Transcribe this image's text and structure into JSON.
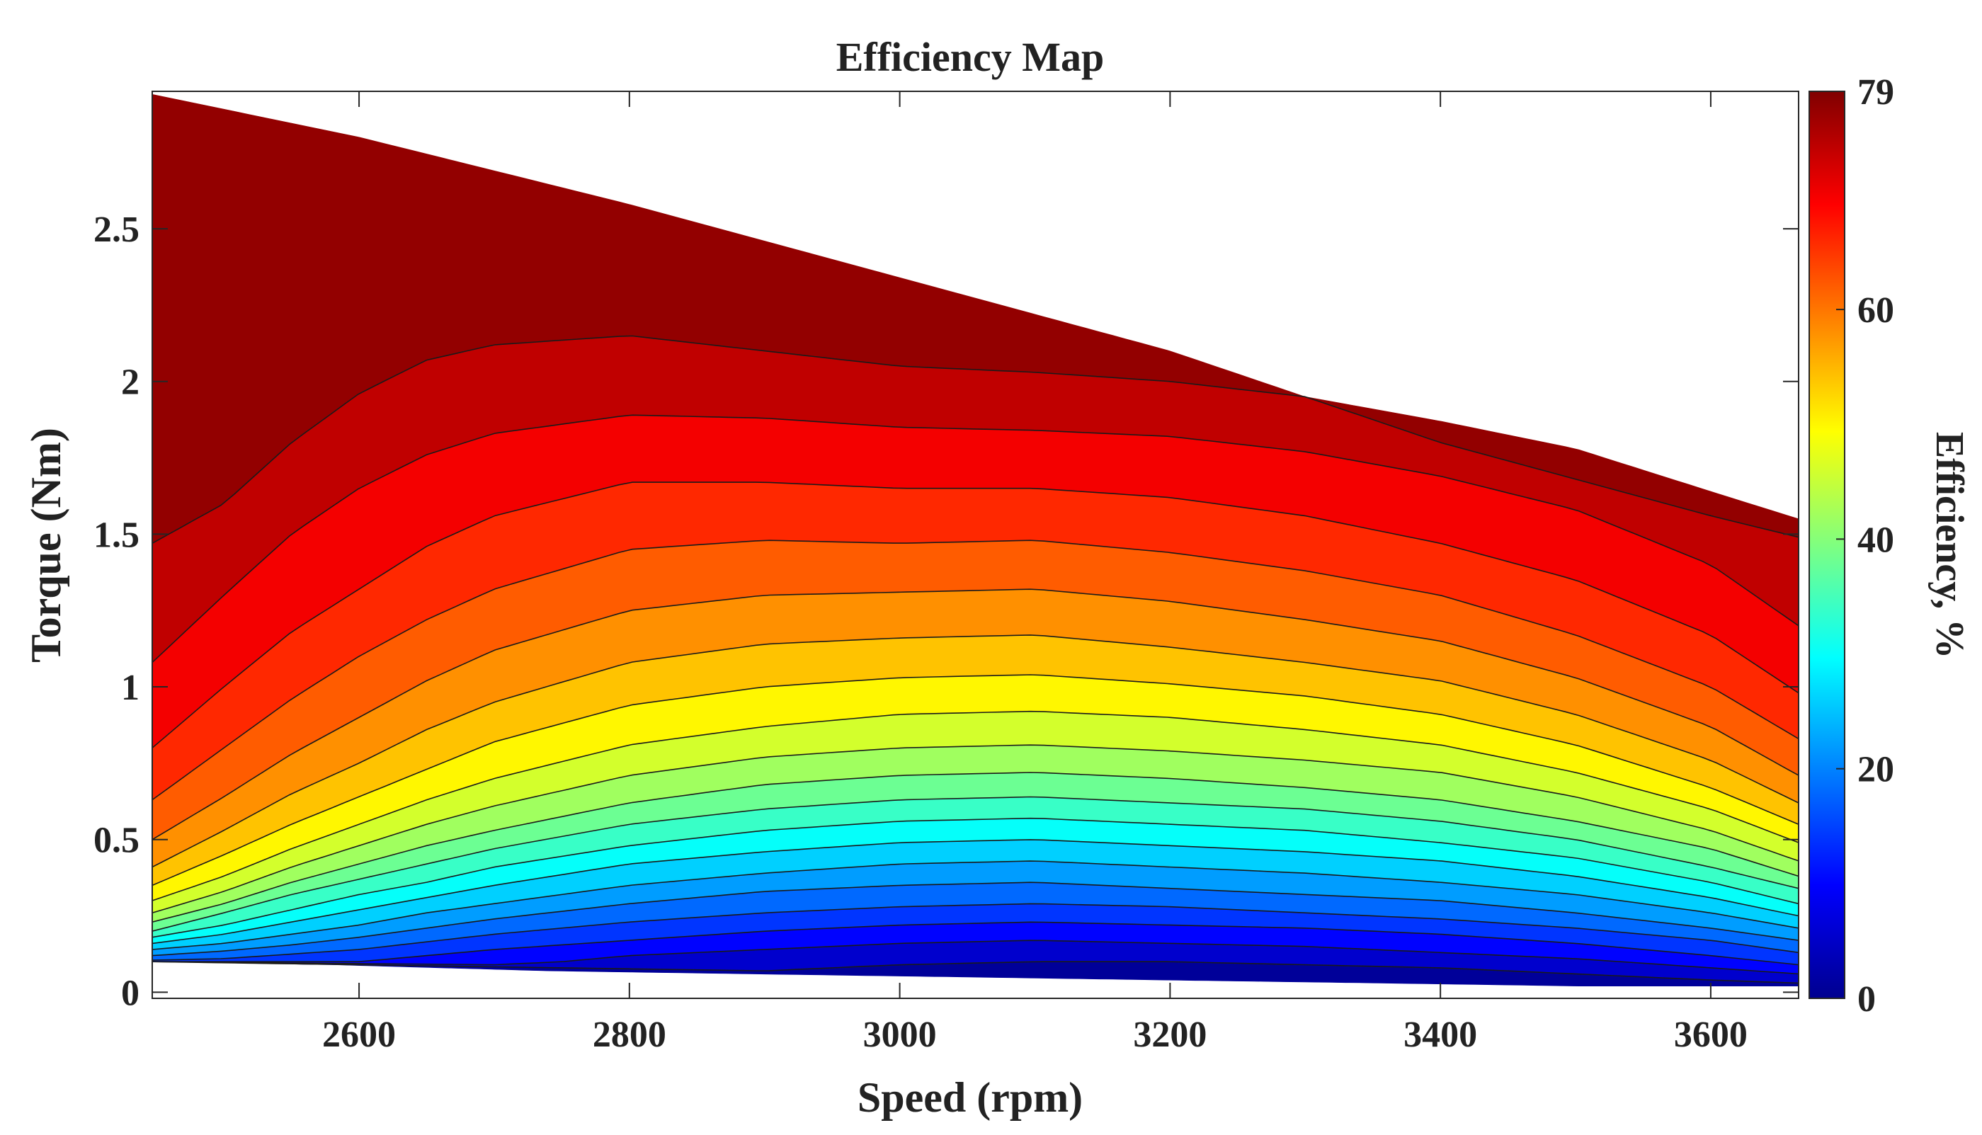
{
  "chart_data": {
    "type": "contourf",
    "title": "Efficiency Map",
    "xlabel": "Speed (rpm)",
    "ylabel": "Torque (Nm)",
    "xlim": [
      2447,
      3665
    ],
    "ylim": [
      -0.02,
      2.95
    ],
    "xticks": [
      2600,
      2800,
      3000,
      3200,
      3400,
      3600
    ],
    "yticks": [
      0,
      0.5,
      1,
      1.5,
      2,
      2.5
    ],
    "xtick_labels": [
      "2600",
      "2800",
      "3000",
      "3200",
      "3400",
      "3600"
    ],
    "ytick_labels": [
      "0",
      "0.5",
      "1",
      "1.5",
      "2",
      "2.5"
    ],
    "grid": false,
    "colorbar": {
      "label": "Efficiency, %",
      "min": 0,
      "max": 79,
      "ticks": [
        0,
        20,
        40,
        60,
        79
      ],
      "tick_labels": [
        "0",
        "20",
        "40",
        "60",
        "79"
      ],
      "colormap": "jet",
      "position": "right"
    },
    "contour_levels": [
      0,
      4,
      8,
      12,
      16,
      20,
      24,
      28,
      32,
      36,
      40,
      44,
      48,
      52,
      56,
      60,
      64,
      68,
      72,
      76,
      79
    ],
    "max_torque_envelope": {
      "speed": [
        2447,
        2600,
        2800,
        3000,
        3200,
        3400,
        3600,
        3665
      ],
      "torque": [
        2.94,
        2.8,
        2.58,
        2.34,
        2.1,
        1.8,
        1.56,
        1.49
      ]
    },
    "min_torque_floor": {
      "speed": [
        2447,
        2580,
        2740,
        2890,
        3045,
        3195,
        3355,
        3505,
        3665
      ],
      "torque": [
        0.1,
        0.09,
        0.07,
        0.06,
        0.05,
        0.04,
        0.03,
        0.02,
        0.02
      ]
    },
    "contours": [
      {
        "level": 76,
        "speed": [
          2447,
          2500,
          2550,
          2600,
          2650,
          2700,
          2800,
          2900,
          3000,
          3100,
          3200,
          3300,
          3400,
          3500,
          3600,
          3665
        ],
        "torque": [
          1.47,
          1.6,
          1.8,
          1.96,
          2.07,
          2.12,
          2.15,
          2.1,
          2.05,
          2.03,
          2.0,
          1.95,
          1.87,
          1.78,
          1.64,
          1.55
        ]
      },
      {
        "level": 72,
        "speed": [
          2447,
          2500,
          2550,
          2600,
          2650,
          2700,
          2800,
          2900,
          3000,
          3100,
          3200,
          3300,
          3400,
          3500,
          3600,
          3665
        ],
        "torque": [
          1.08,
          1.3,
          1.5,
          1.65,
          1.76,
          1.83,
          1.89,
          1.88,
          1.85,
          1.84,
          1.82,
          1.77,
          1.69,
          1.58,
          1.4,
          1.2
        ]
      },
      {
        "level": 68,
        "speed": [
          2447,
          2500,
          2550,
          2600,
          2650,
          2700,
          2800,
          2900,
          3000,
          3100,
          3200,
          3300,
          3400,
          3500,
          3600,
          3665
        ],
        "torque": [
          0.8,
          1.0,
          1.18,
          1.32,
          1.46,
          1.56,
          1.67,
          1.67,
          1.65,
          1.65,
          1.62,
          1.56,
          1.47,
          1.35,
          1.17,
          0.98
        ]
      },
      {
        "level": 64,
        "speed": [
          2447,
          2500,
          2550,
          2600,
          2650,
          2700,
          2800,
          2900,
          3000,
          3100,
          3200,
          3300,
          3400,
          3500,
          3600,
          3665
        ],
        "torque": [
          0.63,
          0.8,
          0.96,
          1.1,
          1.22,
          1.32,
          1.45,
          1.48,
          1.47,
          1.48,
          1.44,
          1.38,
          1.3,
          1.17,
          1.0,
          0.83
        ]
      },
      {
        "level": 60,
        "speed": [
          2447,
          2500,
          2550,
          2600,
          2650,
          2700,
          2800,
          2900,
          3000,
          3100,
          3200,
          3300,
          3400,
          3500,
          3600,
          3665
        ],
        "torque": [
          0.5,
          0.64,
          0.78,
          0.9,
          1.02,
          1.12,
          1.25,
          1.3,
          1.31,
          1.32,
          1.28,
          1.22,
          1.15,
          1.03,
          0.87,
          0.71
        ]
      },
      {
        "level": 56,
        "speed": [
          2447,
          2500,
          2550,
          2600,
          2650,
          2700,
          2800,
          2900,
          3000,
          3100,
          3200,
          3300,
          3400,
          3500,
          3600,
          3665
        ],
        "torque": [
          0.41,
          0.53,
          0.65,
          0.75,
          0.86,
          0.95,
          1.08,
          1.14,
          1.16,
          1.17,
          1.13,
          1.08,
          1.02,
          0.91,
          0.76,
          0.62
        ]
      },
      {
        "level": 52,
        "speed": [
          2447,
          2500,
          2550,
          2600,
          2650,
          2700,
          2800,
          2900,
          3000,
          3100,
          3200,
          3300,
          3400,
          3500,
          3600,
          3665
        ],
        "torque": [
          0.35,
          0.45,
          0.55,
          0.64,
          0.73,
          0.82,
          0.94,
          1.0,
          1.03,
          1.04,
          1.01,
          0.97,
          0.91,
          0.81,
          0.67,
          0.55
        ]
      },
      {
        "level": 48,
        "speed": [
          2447,
          2500,
          2550,
          2600,
          2650,
          2700,
          2800,
          2900,
          3000,
          3100,
          3200,
          3300,
          3400,
          3500,
          3600,
          3665
        ],
        "torque": [
          0.3,
          0.38,
          0.47,
          0.55,
          0.63,
          0.7,
          0.81,
          0.87,
          0.91,
          0.92,
          0.9,
          0.86,
          0.81,
          0.72,
          0.6,
          0.49
        ]
      },
      {
        "level": 44,
        "speed": [
          2447,
          2500,
          2550,
          2600,
          2650,
          2700,
          2800,
          2900,
          3000,
          3100,
          3200,
          3300,
          3400,
          3500,
          3600,
          3665
        ],
        "torque": [
          0.26,
          0.33,
          0.41,
          0.48,
          0.55,
          0.61,
          0.71,
          0.77,
          0.8,
          0.81,
          0.79,
          0.76,
          0.72,
          0.64,
          0.53,
          0.43
        ]
      },
      {
        "level": 40,
        "speed": [
          2447,
          2500,
          2550,
          2600,
          2650,
          2700,
          2800,
          2900,
          3000,
          3100,
          3200,
          3300,
          3400,
          3500,
          3600,
          3665
        ],
        "torque": [
          0.23,
          0.29,
          0.36,
          0.42,
          0.48,
          0.53,
          0.62,
          0.68,
          0.71,
          0.72,
          0.7,
          0.67,
          0.63,
          0.56,
          0.47,
          0.38
        ]
      },
      {
        "level": 36,
        "speed": [
          2447,
          2500,
          2550,
          2600,
          2650,
          2700,
          2800,
          2900,
          3000,
          3100,
          3200,
          3300,
          3400,
          3500,
          3600,
          3665
        ],
        "torque": [
          0.2,
          0.26,
          0.32,
          0.37,
          0.42,
          0.47,
          0.55,
          0.6,
          0.63,
          0.64,
          0.62,
          0.6,
          0.56,
          0.5,
          0.41,
          0.34
        ]
      },
      {
        "level": 32,
        "speed": [
          2447,
          2500,
          2550,
          2600,
          2650,
          2700,
          2800,
          2900,
          3000,
          3100,
          3200,
          3300,
          3400,
          3500,
          3600,
          3665
        ],
        "torque": [
          0.18,
          0.22,
          0.27,
          0.32,
          0.36,
          0.41,
          0.48,
          0.53,
          0.56,
          0.57,
          0.55,
          0.53,
          0.49,
          0.44,
          0.36,
          0.29
        ]
      },
      {
        "level": 28,
        "speed": [
          2447,
          2500,
          2550,
          2600,
          2650,
          2700,
          2800,
          2900,
          3000,
          3100,
          3200,
          3300,
          3400,
          3500,
          3600,
          3665
        ],
        "torque": [
          0.16,
          0.19,
          0.23,
          0.27,
          0.31,
          0.35,
          0.42,
          0.46,
          0.49,
          0.5,
          0.48,
          0.46,
          0.43,
          0.38,
          0.31,
          0.25
        ]
      },
      {
        "level": 24,
        "speed": [
          2447,
          2500,
          2550,
          2600,
          2650,
          2700,
          2800,
          2900,
          3000,
          3100,
          3200,
          3300,
          3400,
          3500,
          3600,
          3665
        ],
        "torque": [
          0.14,
          0.16,
          0.19,
          0.22,
          0.26,
          0.29,
          0.35,
          0.39,
          0.42,
          0.43,
          0.41,
          0.39,
          0.36,
          0.32,
          0.26,
          0.21
        ]
      },
      {
        "level": 20,
        "speed": [
          2447,
          2500,
          2550,
          2600,
          2650,
          2700,
          2800,
          2900,
          3000,
          3100,
          3200,
          3300,
          3400,
          3500,
          3600,
          3665
        ],
        "torque": [
          0.12,
          0.135,
          0.155,
          0.18,
          0.21,
          0.24,
          0.29,
          0.33,
          0.35,
          0.36,
          0.34,
          0.32,
          0.3,
          0.26,
          0.21,
          0.17
        ]
      },
      {
        "level": 16,
        "speed": [
          2447,
          2500,
          2550,
          2600,
          2650,
          2700,
          2800,
          2900,
          3000,
          3100,
          3200,
          3300,
          3400,
          3500,
          3600,
          3665
        ],
        "torque": [
          0.105,
          0.11,
          0.125,
          0.14,
          0.165,
          0.19,
          0.23,
          0.26,
          0.28,
          0.29,
          0.28,
          0.26,
          0.24,
          0.21,
          0.17,
          0.13
        ]
      },
      {
        "level": 12,
        "speed": [
          2447,
          2600,
          2650,
          2700,
          2800,
          2900,
          3000,
          3100,
          3200,
          3300,
          3400,
          3500,
          3600,
          3665
        ],
        "torque": [
          0.1,
          0.1,
          0.12,
          0.14,
          0.17,
          0.2,
          0.22,
          0.23,
          0.22,
          0.21,
          0.19,
          0.16,
          0.12,
          0.09
        ]
      },
      {
        "level": 8,
        "speed": [
          2447,
          2700,
          2750,
          2800,
          2900,
          3000,
          3100,
          3200,
          3300,
          3400,
          3500,
          3600,
          3665
        ],
        "torque": [
          0.1,
          0.09,
          0.1,
          0.12,
          0.14,
          0.16,
          0.17,
          0.16,
          0.15,
          0.13,
          0.11,
          0.08,
          0.06
        ]
      },
      {
        "level": 4,
        "speed": [
          2447,
          2900,
          3000,
          3100,
          3200,
          3300,
          3400,
          3500,
          3600,
          3665
        ],
        "torque": [
          0.1,
          0.07,
          0.09,
          0.1,
          0.1,
          0.09,
          0.08,
          0.06,
          0.04,
          0.03
        ]
      }
    ]
  }
}
